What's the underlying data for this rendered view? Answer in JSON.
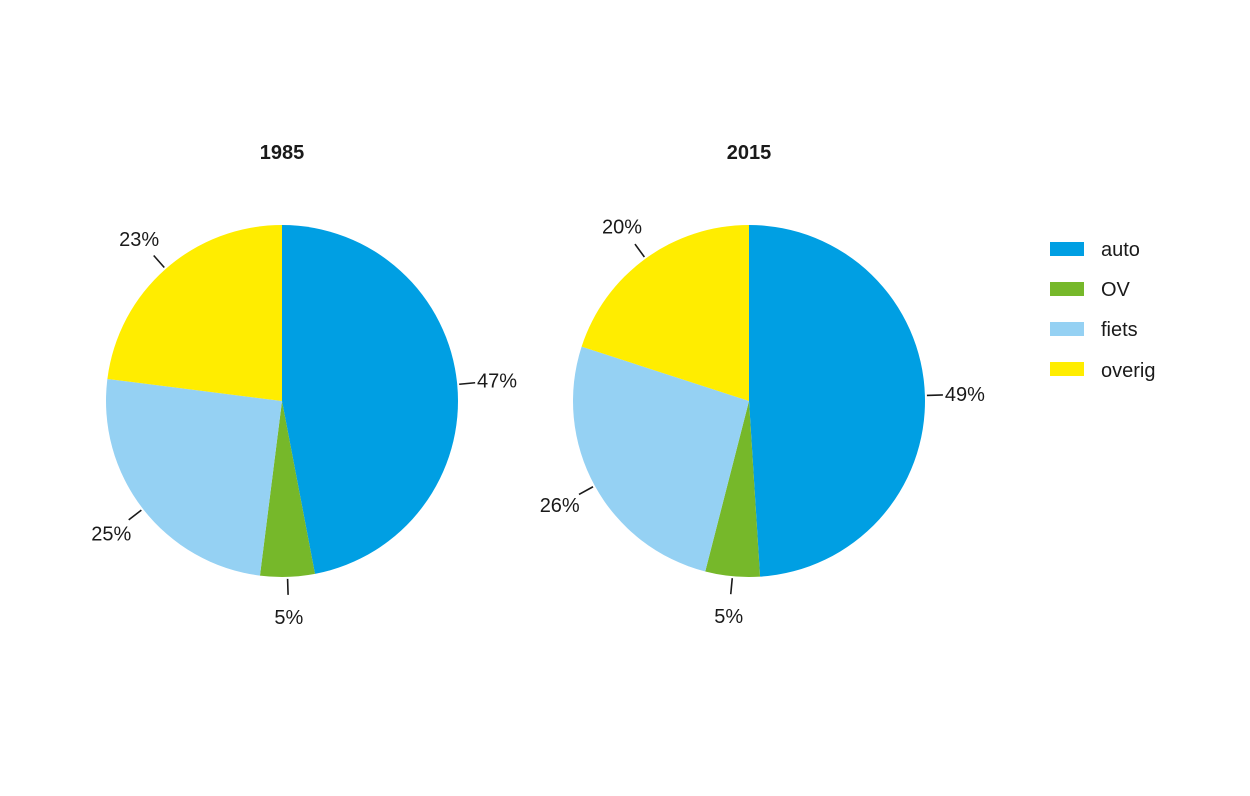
{
  "chart_data": [
    {
      "type": "pie",
      "title": "1985",
      "categories": [
        "auto",
        "OV",
        "fiets",
        "overig"
      ],
      "values": [
        47,
        5,
        25,
        23
      ],
      "labels": [
        "47%",
        "5%",
        "25%",
        "23%"
      ]
    },
    {
      "type": "pie",
      "title": "2015",
      "categories": [
        "auto",
        "OV",
        "fiets",
        "overig"
      ],
      "values": [
        49,
        5,
        26,
        20
      ],
      "labels": [
        "49%",
        "5%",
        "26%",
        "20%"
      ]
    }
  ],
  "legend": {
    "placement": "right",
    "items": [
      {
        "label": "auto",
        "color": "#009FE3"
      },
      {
        "label": "OV",
        "color": "#76B82A"
      },
      {
        "label": "fiets",
        "color": "#95D1F3"
      },
      {
        "label": "overig",
        "color": "#FFED00"
      }
    ]
  }
}
